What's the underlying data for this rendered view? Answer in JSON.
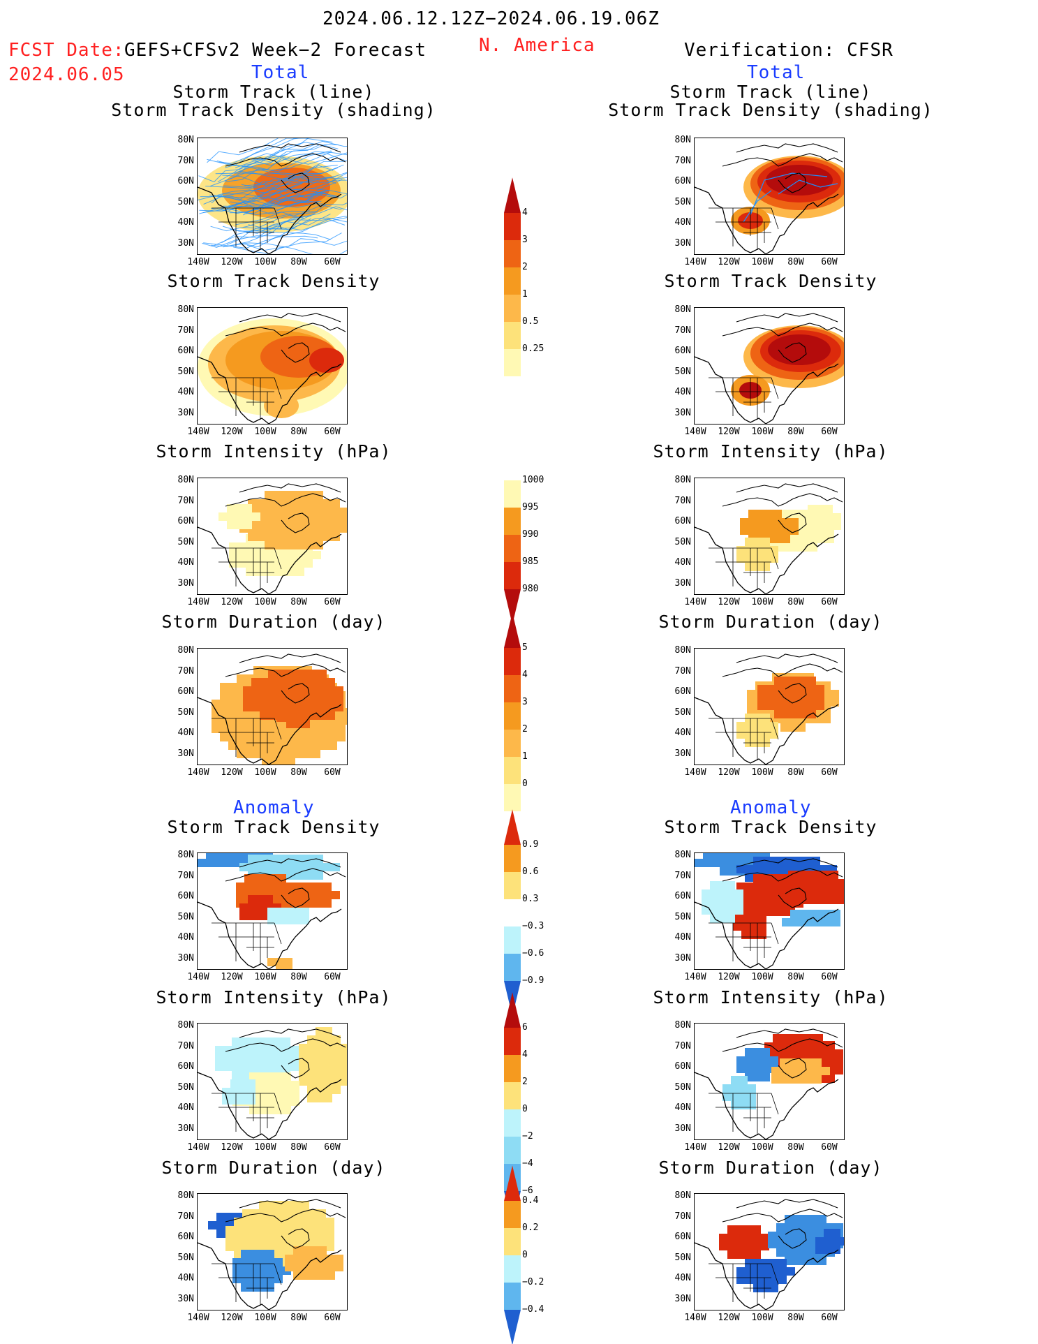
{
  "header": {
    "date_range": "2024.06.12.12Z−2024.06.19.06Z",
    "fcst_label": "FCST Date:",
    "fcst_model": "GEFS+CFSv2 Week−2 Forecast",
    "fcst_date": "2024.06.05",
    "region": "N. America",
    "verification": "Verification: CFSR",
    "left_total": "Total",
    "right_total": "Total",
    "left_anomaly": "Anomaly",
    "right_anomaly": "Anomaly"
  },
  "panels": {
    "track_line": "Storm Track (line)",
    "track_shading": "Storm Track Density (shading)",
    "density": "Storm Track Density",
    "intensity": "Storm Intensity (hPa)",
    "duration": "Storm Duration (day)"
  },
  "axes": {
    "lat_labels": [
      "80N",
      "70N",
      "60N",
      "50N",
      "40N",
      "30N"
    ],
    "lon_labels": [
      "140W",
      "120W",
      "100W",
      "80W",
      "60W"
    ]
  },
  "colorbars": {
    "density_total": [
      "4",
      "3",
      "2",
      "1",
      "0.5",
      "0.25"
    ],
    "intensity_total": [
      "1000",
      "995",
      "990",
      "985",
      "980"
    ],
    "duration_total": [
      "5",
      "4",
      "3",
      "2",
      "1",
      "0"
    ],
    "density_anom": [
      "0.9",
      "0.6",
      "0.3",
      "−0.3",
      "−0.6",
      "−0.9"
    ],
    "intensity_anom": [
      "6",
      "4",
      "2",
      "0",
      "−2",
      "−4",
      "−6"
    ],
    "duration_anom": [
      "0.4",
      "0.2",
      "0",
      "−0.2",
      "−0.4"
    ]
  },
  "palette": {
    "warm": [
      "#fff9b4",
      "#fde27a",
      "#fdb84a",
      "#f59a1f",
      "#ee6414",
      "#dc2a0c",
      "#b40c0c"
    ],
    "cool": [
      "#bdf3fb",
      "#8edcf4",
      "#5fb6ee",
      "#3b8ee0",
      "#1f5fd0"
    ],
    "track": "#1e90ff"
  }
}
